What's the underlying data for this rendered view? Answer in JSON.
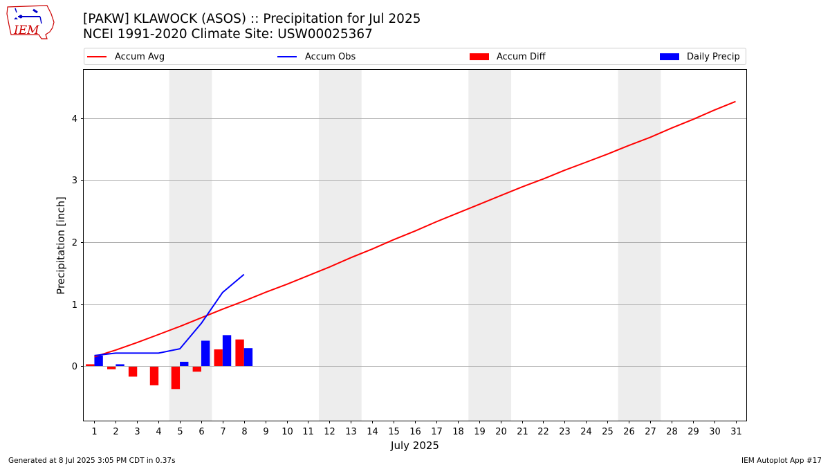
{
  "header": {
    "title_line1": "[PAKW] KLAWOCK (ASOS) :: Precipitation for Jul 2025",
    "title_line2": "NCEI 1991-2020 Climate Site: USW00025367",
    "logo_text": "IEM"
  },
  "footer": {
    "generated": "Generated at 8 Jul 2025 3:05 PM CDT in 0.37s",
    "app": "IEM Autoplot App #17"
  },
  "legend": [
    {
      "label": "Accum Avg",
      "kind": "line",
      "color": "#ff0000"
    },
    {
      "label": "Accum Obs",
      "kind": "line",
      "color": "#0000ff"
    },
    {
      "label": "Accum Diff",
      "kind": "bar",
      "color": "#ff0000"
    },
    {
      "label": "Daily Precip",
      "kind": "bar",
      "color": "#0000ff"
    }
  ],
  "chart_data": {
    "type": "bar",
    "title": "[PAKW] KLAWOCK (ASOS) :: Precipitation for Jul 2025",
    "subtitle": "NCEI 1991-2020 Climate Site: USW00025367",
    "xlabel": "July 2025",
    "ylabel": "Precipitation [inch]",
    "xlim": [
      0.5,
      31.5
    ],
    "ylim": [
      -0.88,
      4.78
    ],
    "yticks": [
      0,
      1,
      2,
      3,
      4
    ],
    "categories": [
      "1",
      "2",
      "3",
      "4",
      "5",
      "6",
      "7",
      "8",
      "9",
      "10",
      "11",
      "12",
      "13",
      "14",
      "15",
      "16",
      "17",
      "18",
      "19",
      "20",
      "21",
      "22",
      "23",
      "24",
      "25",
      "26",
      "27",
      "28",
      "29",
      "30",
      "31"
    ],
    "weekend_shading": [
      [
        5,
        6
      ],
      [
        12,
        13
      ],
      [
        19,
        20
      ],
      [
        26,
        27
      ]
    ],
    "grid": "horizontal",
    "legend_position": "top",
    "series": [
      {
        "name": "Accum Avg",
        "kind": "line",
        "color": "#ff0000",
        "x": [
          1,
          2,
          3,
          4,
          5,
          6,
          7,
          8,
          9,
          10,
          11,
          12,
          13,
          14,
          15,
          16,
          17,
          18,
          19,
          20,
          21,
          22,
          23,
          24,
          25,
          26,
          27,
          28,
          29,
          30,
          31
        ],
        "values": [
          0.15,
          0.26,
          0.38,
          0.51,
          0.64,
          0.78,
          0.92,
          1.05,
          1.19,
          1.32,
          1.46,
          1.6,
          1.75,
          1.89,
          2.04,
          2.18,
          2.33,
          2.47,
          2.61,
          2.75,
          2.89,
          3.02,
          3.16,
          3.29,
          3.42,
          3.56,
          3.69,
          3.84,
          3.98,
          4.13,
          4.27
        ]
      },
      {
        "name": "Accum Obs",
        "kind": "line",
        "color": "#0000ff",
        "x": [
          1,
          2,
          3,
          4,
          5,
          6,
          7,
          8
        ],
        "values": [
          0.17,
          0.21,
          0.21,
          0.21,
          0.28,
          0.69,
          1.19,
          1.48
        ]
      },
      {
        "name": "Accum Diff",
        "kind": "bar",
        "color": "#ff0000",
        "x": [
          1,
          2,
          3,
          4,
          5,
          6,
          7,
          8
        ],
        "values": [
          0.03,
          -0.05,
          -0.17,
          -0.31,
          -0.37,
          -0.09,
          0.27,
          0.43
        ]
      },
      {
        "name": "Daily Precip",
        "kind": "bar",
        "color": "#0000ff",
        "x": [
          1,
          2,
          3,
          4,
          5,
          6,
          7,
          8
        ],
        "values": [
          0.17,
          0.03,
          0.0,
          0.0,
          0.07,
          0.41,
          0.5,
          0.29
        ]
      }
    ]
  }
}
